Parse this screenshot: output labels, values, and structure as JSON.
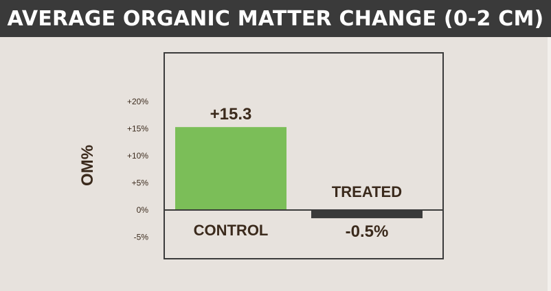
{
  "chart_data": {
    "type": "bar",
    "title": "AVERAGE ORGANIC MATTER CHANGE (0-2 CM)",
    "ylabel": "OM%",
    "xlabel": "",
    "categories": [
      "CONTROL",
      "TREATED"
    ],
    "values": [
      15.3,
      -0.5
    ],
    "value_labels": [
      "+15.3",
      "-0.5%"
    ],
    "yticks": [
      {
        "value": 20,
        "label": "+20%"
      },
      {
        "value": 15,
        "label": "+15%"
      },
      {
        "value": 10,
        "label": "+10%"
      },
      {
        "value": 5,
        "label": "+5%"
      },
      {
        "value": 0,
        "label": "0%"
      },
      {
        "value": -5,
        "label": "-5%"
      }
    ],
    "ylim": [
      -9,
      29
    ],
    "grid": false,
    "colors": {
      "positive": "#7bbe58",
      "negative": "#3a3a3a",
      "frame": "#3a3a3a",
      "text": "#3b2a1c"
    }
  }
}
